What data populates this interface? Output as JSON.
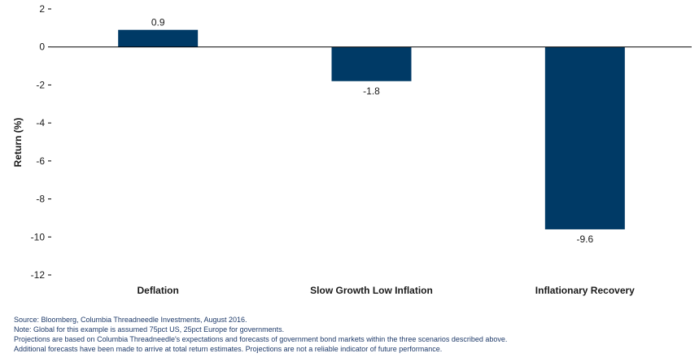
{
  "chart_data": {
    "type": "bar",
    "categories": [
      "Deflation",
      "Slow Growth Low Inflation",
      "Inflationary Recovery"
    ],
    "values": [
      0.9,
      -1.8,
      -9.6
    ],
    "data_labels": [
      "0.9",
      "-1.8",
      "-9.6"
    ],
    "title": "",
    "xlabel": "",
    "ylabel": "Return (%)",
    "ylim": [
      -12,
      2
    ],
    "yticks": [
      2,
      0,
      -2,
      -4,
      -6,
      -8,
      -10,
      -12
    ],
    "grid": false,
    "legend": "none",
    "bar_color": "#003a66",
    "axis_color": "#000000"
  },
  "notes": [
    "Source: Bloomberg, Columbia Threadneedle Investments, August 2016.",
    "Note: Global for this example is assumed 75pct US, 25pct Europe for governments.",
    "Projections are based on Columbia Threadneedle's expectations and forecasts of government bond markets within the three scenarios described above.",
    "Additional forecasts have been made to arrive at total return estimates. Projections are not a reliable indicator of future performance."
  ]
}
